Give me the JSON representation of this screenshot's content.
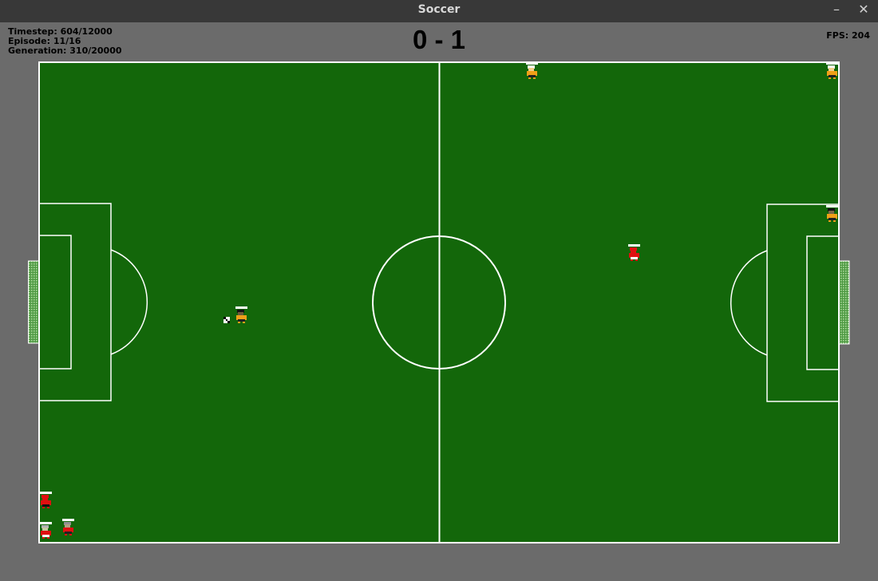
{
  "window": {
    "title": "Soccer",
    "minimize_glyph": "–",
    "close_glyph": "✕"
  },
  "hud": {
    "timestep": "Timestep: 604/12000",
    "episode": "Episode: 11/16",
    "generation": "Generation: 310/20000",
    "score": "0 - 1",
    "fps": "FPS: 204"
  },
  "colors": {
    "background": "#6b6b6b",
    "titlebar": "#383838",
    "pitch": "#13670a",
    "lines": "#ffffff",
    "goal_net": "#9bd18a",
    "team_red": "#e01010",
    "team_orange": "#f0a018"
  },
  "players": [
    {
      "team": "orange",
      "hair": "#ffffff",
      "skin": "#f4d08a",
      "shirt": "#f0a018",
      "shorts": "#222222",
      "energy": 1.0
    },
    {
      "team": "orange",
      "hair": "#ffffff",
      "skin": "#f4d08a",
      "shirt": "#f0a018",
      "shorts": "#222222",
      "energy": 1.0
    },
    {
      "team": "orange",
      "hair": "#111111",
      "skin": "#6a5a3a",
      "shirt": "#f0a018",
      "shorts": "#222222",
      "energy": 1.0
    },
    {
      "team": "orange",
      "hair": "#111111",
      "skin": "#7a6848",
      "shirt": "#f0a018",
      "shorts": "#222222",
      "energy": 1.0
    },
    {
      "team": "red",
      "hair": "#e01010",
      "skin": "#e01010",
      "shirt": "#e01010",
      "shorts": "#ffffff",
      "energy": 1.0
    },
    {
      "team": "red",
      "hair": "#e01010",
      "skin": "#e01010",
      "shirt": "#e01010",
      "shorts": "#111111",
      "energy": 1.0
    },
    {
      "team": "red",
      "hair": "#b0b0b0",
      "skin": "#c8c8a0",
      "shirt": "#e01010",
      "shorts": "#ffffff",
      "energy": 1.0
    },
    {
      "team": "red",
      "hair": "#909090",
      "skin": "#b0a080",
      "shirt": "#e01010",
      "shorts": "#222222",
      "energy": 1.0
    }
  ]
}
